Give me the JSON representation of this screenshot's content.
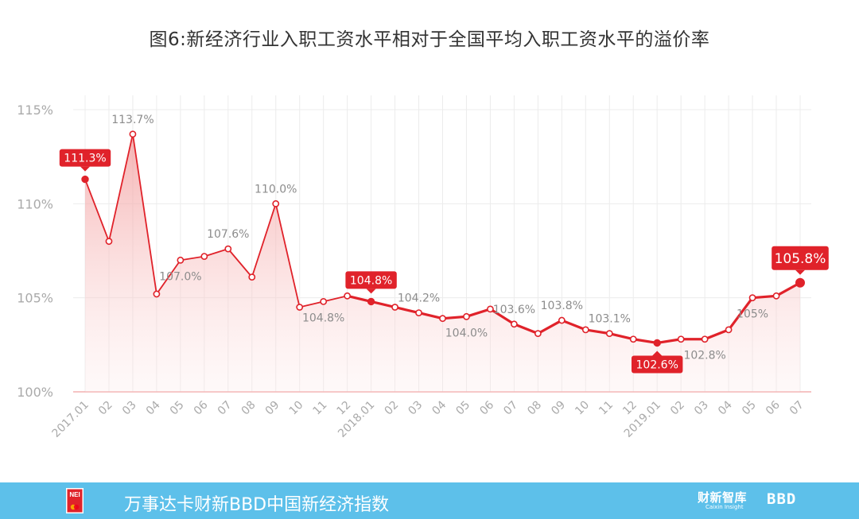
{
  "title": "图6:新经济行业入职工资水平相对于全国平均入职工资水平的溢价率",
  "footer": {
    "index_name": "万事达卡财新BBD中国新经济指数",
    "caixin_logo": "财新智库",
    "caixin_sub": "Caixin Insight",
    "bbd_logo": "BBD",
    "logo_text": "NEI"
  },
  "colors": {
    "line": "#e0222a",
    "fill_top": "#f4a8a8",
    "baseline": "#f0a0a0",
    "label_bg": "#e0222a",
    "footer_bg": "#5dc0ea",
    "grid": "#ececec",
    "axis_text": "#999999"
  },
  "chart_data": {
    "type": "area",
    "x": [
      "2017.01",
      "02",
      "03",
      "04",
      "05",
      "06",
      "07",
      "08",
      "09",
      "10",
      "11",
      "12",
      "2018.01",
      "02",
      "03",
      "04",
      "05",
      "06",
      "07",
      "08",
      "09",
      "10",
      "11",
      "12",
      "2019.01",
      "02",
      "03",
      "04",
      "05",
      "06",
      "07"
    ],
    "y": [
      111.3,
      108.0,
      113.7,
      105.2,
      107.0,
      107.2,
      107.6,
      106.1,
      110.0,
      104.5,
      104.8,
      105.1,
      104.8,
      104.5,
      104.2,
      103.9,
      104.0,
      104.4,
      103.6,
      103.1,
      103.8,
      103.3,
      103.1,
      102.8,
      102.6,
      102.8,
      102.8,
      103.3,
      105.0,
      105.1,
      105.8
    ],
    "ylim": [
      100,
      115
    ],
    "yticks": [
      100,
      105,
      110,
      115
    ],
    "ytick_labels": [
      "100%",
      "105%",
      "110%",
      "115%"
    ],
    "grid": true,
    "point_labels": [
      {
        "index": 2,
        "text": "113.7%"
      },
      {
        "index": 4,
        "text": "107.0%"
      },
      {
        "index": 6,
        "text": "107.6%"
      },
      {
        "index": 8,
        "text": "110.0%"
      },
      {
        "index": 10,
        "text": "104.8%"
      },
      {
        "index": 14,
        "text": "104.2%"
      },
      {
        "index": 16,
        "text": "104.0%"
      },
      {
        "index": 18,
        "text": "103.6%"
      },
      {
        "index": 20,
        "text": "103.8%"
      },
      {
        "index": 22,
        "text": "103.1%"
      },
      {
        "index": 26,
        "text": "102.8%"
      },
      {
        "index": 28,
        "text": "105%"
      }
    ],
    "callouts": [
      {
        "index": 0,
        "text": "111.3%"
      },
      {
        "index": 12,
        "text": "104.8%"
      },
      {
        "index": 24,
        "text": "102.6%"
      },
      {
        "index": 30,
        "text": "105.8%"
      }
    ]
  }
}
